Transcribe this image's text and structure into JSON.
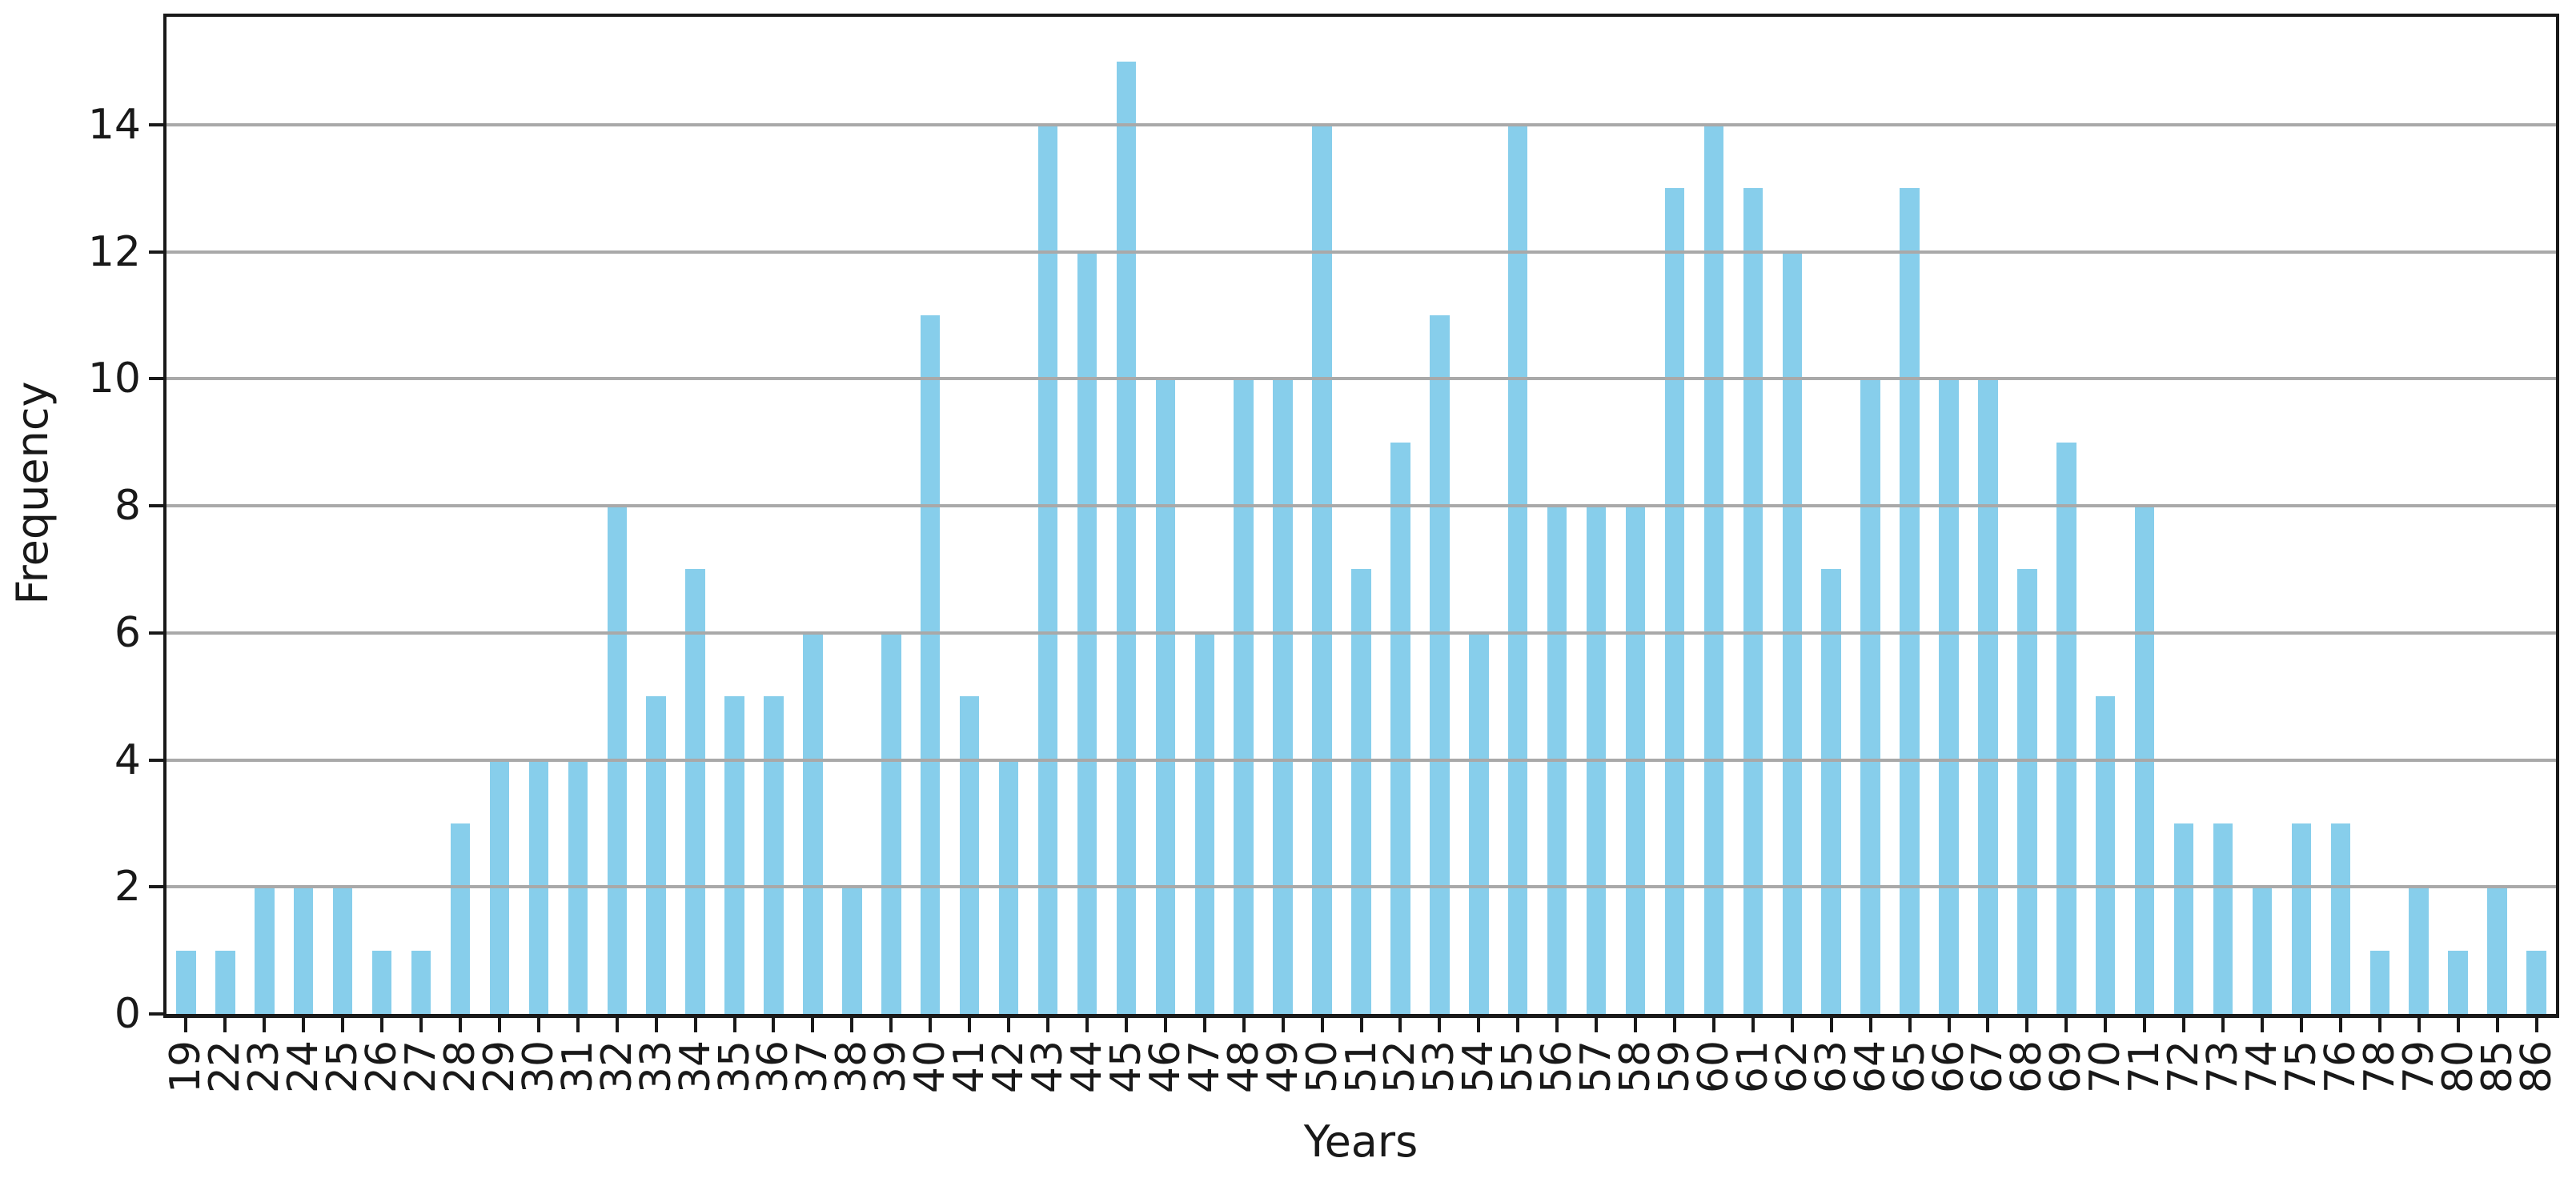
{
  "chart_data": {
    "type": "bar",
    "xlabel": "Years",
    "ylabel": "Frequency",
    "categories": [
      "19",
      "22",
      "23",
      "24",
      "25",
      "26",
      "27",
      "28",
      "29",
      "30",
      "31",
      "32",
      "33",
      "34",
      "35",
      "36",
      "37",
      "38",
      "39",
      "40",
      "41",
      "42",
      "43",
      "44",
      "45",
      "46",
      "47",
      "48",
      "49",
      "50",
      "51",
      "52",
      "53",
      "54",
      "55",
      "56",
      "57",
      "58",
      "59",
      "60",
      "61",
      "62",
      "63",
      "64",
      "65",
      "66",
      "67",
      "68",
      "69",
      "70",
      "71",
      "72",
      "73",
      "74",
      "75",
      "76",
      "78",
      "79",
      "80",
      "85",
      "86"
    ],
    "values": [
      1,
      1,
      2,
      2,
      2,
      1,
      1,
      3,
      4,
      4,
      4,
      8,
      5,
      7,
      5,
      5,
      6,
      2,
      6,
      11,
      5,
      4,
      14,
      12,
      15,
      10,
      6,
      10,
      10,
      14,
      7,
      9,
      11,
      6,
      14,
      8,
      8,
      8,
      13,
      14,
      13,
      12,
      7,
      10,
      13,
      10,
      10,
      7,
      9,
      5,
      8,
      3,
      3,
      2,
      3,
      3,
      1,
      2,
      1,
      2,
      1
    ],
    "yticks": [
      0,
      2,
      4,
      6,
      8,
      10,
      12,
      14
    ],
    "ylim": [
      0,
      15.7
    ],
    "bar_width_fraction": 0.5,
    "grid": "horizontal",
    "legend": "none",
    "bar_color": "#87CEEB",
    "grid_color": "#a9a9a9",
    "axis_color": "#191919",
    "text_color": "#191919"
  }
}
